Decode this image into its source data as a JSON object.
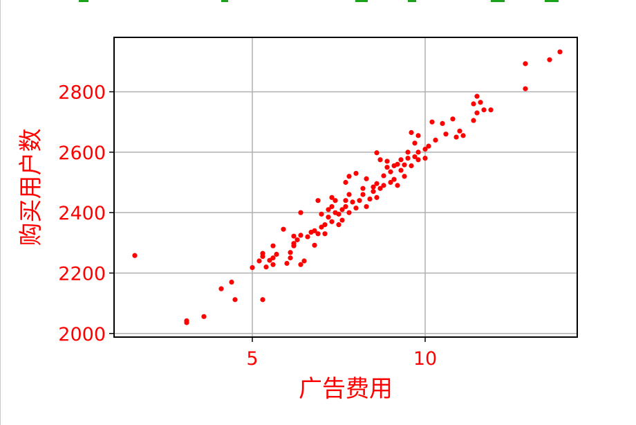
{
  "chart_data": {
    "type": "scatter",
    "title": "",
    "xlabel": "广告费用",
    "ylabel": "购买用户数",
    "xlim": [
      1.0,
      14.4
    ],
    "ylim": [
      1988,
      2980
    ],
    "xticks": [
      5,
      10
    ],
    "yticks": [
      2000,
      2200,
      2400,
      2600,
      2800
    ],
    "grid": true,
    "marker_color": "#ff0000",
    "series": [
      {
        "points": [
          [
            1.6,
            2258
          ],
          [
            3.1,
            2042
          ],
          [
            3.1,
            2036
          ],
          [
            3.6,
            2056
          ],
          [
            4.1,
            2148
          ],
          [
            4.4,
            2170
          ],
          [
            4.5,
            2112
          ],
          [
            5.3,
            2112
          ],
          [
            5.0,
            2218
          ],
          [
            5.2,
            2240
          ],
          [
            5.3,
            2255
          ],
          [
            5.3,
            2265
          ],
          [
            5.4,
            2220
          ],
          [
            5.5,
            2242
          ],
          [
            5.6,
            2228
          ],
          [
            5.6,
            2250
          ],
          [
            5.7,
            2262
          ],
          [
            5.6,
            2290
          ],
          [
            5.9,
            2345
          ],
          [
            6.0,
            2232
          ],
          [
            6.1,
            2250
          ],
          [
            6.1,
            2268
          ],
          [
            6.2,
            2298
          ],
          [
            6.2,
            2322
          ],
          [
            6.2,
            2290
          ],
          [
            6.3,
            2310
          ],
          [
            6.4,
            2228
          ],
          [
            6.4,
            2325
          ],
          [
            6.5,
            2240
          ],
          [
            6.4,
            2400
          ],
          [
            6.6,
            2320
          ],
          [
            6.7,
            2335
          ],
          [
            6.8,
            2292
          ],
          [
            6.8,
            2340
          ],
          [
            6.9,
            2330
          ],
          [
            6.9,
            2440
          ],
          [
            7.0,
            2352
          ],
          [
            7.0,
            2395
          ],
          [
            7.1,
            2330
          ],
          [
            7.1,
            2360
          ],
          [
            7.2,
            2385
          ],
          [
            7.2,
            2410
          ],
          [
            7.3,
            2420
          ],
          [
            7.3,
            2370
          ],
          [
            7.3,
            2450
          ],
          [
            7.4,
            2400
          ],
          [
            7.4,
            2440
          ],
          [
            7.5,
            2360
          ],
          [
            7.5,
            2395
          ],
          [
            7.6,
            2375
          ],
          [
            7.6,
            2410
          ],
          [
            7.7,
            2420
          ],
          [
            7.7,
            2440
          ],
          [
            7.7,
            2500
          ],
          [
            7.8,
            2400
          ],
          [
            7.8,
            2460
          ],
          [
            7.8,
            2520
          ],
          [
            7.9,
            2435
          ],
          [
            8.0,
            2415
          ],
          [
            8.0,
            2530
          ],
          [
            8.1,
            2440
          ],
          [
            8.2,
            2460
          ],
          [
            8.2,
            2480
          ],
          [
            8.3,
            2420
          ],
          [
            8.3,
            2512
          ],
          [
            8.4,
            2445
          ],
          [
            8.5,
            2470
          ],
          [
            8.5,
            2485
          ],
          [
            8.6,
            2450
          ],
          [
            8.6,
            2496
          ],
          [
            8.6,
            2598
          ],
          [
            8.7,
            2480
          ],
          [
            8.7,
            2575
          ],
          [
            8.8,
            2490
          ],
          [
            8.8,
            2522
          ],
          [
            8.9,
            2550
          ],
          [
            8.9,
            2570
          ],
          [
            9.0,
            2500
          ],
          [
            9.0,
            2535
          ],
          [
            9.1,
            2510
          ],
          [
            9.1,
            2555
          ],
          [
            9.2,
            2560
          ],
          [
            9.2,
            2490
          ],
          [
            9.3,
            2540
          ],
          [
            9.3,
            2575
          ],
          [
            9.4,
            2520
          ],
          [
            9.4,
            2558
          ],
          [
            9.5,
            2580
          ],
          [
            9.5,
            2600
          ],
          [
            9.6,
            2555
          ],
          [
            9.6,
            2665
          ],
          [
            9.7,
            2585
          ],
          [
            9.7,
            2630
          ],
          [
            9.8,
            2600
          ],
          [
            9.8,
            2655
          ],
          [
            9.8,
            2575
          ],
          [
            10.0,
            2610
          ],
          [
            10.0,
            2580
          ],
          [
            10.1,
            2620
          ],
          [
            10.2,
            2700
          ],
          [
            10.3,
            2640
          ],
          [
            10.5,
            2695
          ],
          [
            10.6,
            2660
          ],
          [
            10.8,
            2710
          ],
          [
            10.9,
            2650
          ],
          [
            11.0,
            2670
          ],
          [
            11.1,
            2655
          ],
          [
            11.4,
            2705
          ],
          [
            11.4,
            2760
          ],
          [
            11.5,
            2785
          ],
          [
            11.5,
            2730
          ],
          [
            11.6,
            2765
          ],
          [
            11.7,
            2740
          ],
          [
            11.9,
            2740
          ],
          [
            12.9,
            2810
          ],
          [
            12.9,
            2893
          ],
          [
            13.6,
            2906
          ],
          [
            13.9,
            2932
          ]
        ]
      }
    ]
  }
}
